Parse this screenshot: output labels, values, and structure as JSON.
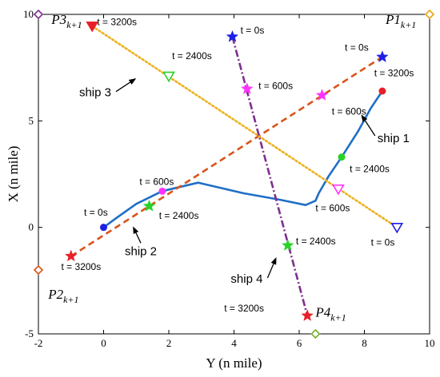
{
  "chart_data": {
    "type": "line",
    "xlabel": "Y (n mile)",
    "ylabel": "X (n mile)",
    "xlim": [
      -2,
      10
    ],
    "ylim": [
      -5,
      10
    ],
    "xticks": [
      "-2",
      "0",
      "2",
      "4",
      "6",
      "8",
      "10"
    ],
    "yticks": [
      "-5",
      "0",
      "5",
      "10"
    ],
    "grid": false,
    "series": [
      {
        "name": "ship 1",
        "color": "#1f6fc6",
        "style": "solid",
        "points": [
          [
            8.55,
            6.4
          ],
          [
            8.2,
            5.6
          ],
          [
            7.8,
            4.5
          ],
          [
            7.3,
            3.3
          ],
          [
            6.9,
            2.4
          ],
          [
            6.6,
            1.6
          ],
          [
            6.5,
            1.25
          ],
          [
            6.2,
            1.05
          ],
          [
            5.4,
            1.3
          ],
          [
            4.3,
            1.6
          ],
          [
            2.9,
            2.1
          ],
          [
            1.8,
            1.7
          ],
          [
            1.0,
            1.1
          ],
          [
            0.4,
            0.45
          ],
          [
            0.0,
            0.0
          ]
        ]
      },
      {
        "name": "ship 2",
        "color": "#d95319",
        "style": "dashed",
        "points": [
          [
            -1.0,
            -1.35
          ],
          [
            8.55,
            8.0
          ]
        ]
      },
      {
        "name": "ship 3",
        "color": "#edb120",
        "style": "dotted",
        "points": [
          [
            -0.35,
            9.45
          ],
          [
            9.0,
            0.0
          ]
        ]
      },
      {
        "name": "ship 4",
        "color": "#7e2f8e",
        "style": "dashdot",
        "points": [
          [
            3.95,
            8.95
          ],
          [
            6.25,
            -4.15
          ]
        ]
      }
    ],
    "markers": [
      {
        "name": "ship1-t0",
        "x": 8.55,
        "y": 6.4,
        "shape": "circle",
        "color": "#e8202a"
      },
      {
        "name": "ship1-t2400",
        "x": 7.3,
        "y": 3.3,
        "shape": "circle",
        "color": "#28d328"
      },
      {
        "name": "ship1-t600",
        "x": 1.8,
        "y": 1.7,
        "shape": "circle",
        "color": "#ff33ff"
      },
      {
        "name": "ship1-t3200",
        "x": 0.0,
        "y": 0.0,
        "shape": "circle",
        "color": "#1f1fe6"
      },
      {
        "name": "ship2-t0",
        "x": 8.55,
        "y": 8.0,
        "shape": "star",
        "color": "#1f1fe6"
      },
      {
        "name": "ship2-t600",
        "x": 6.7,
        "y": 6.2,
        "shape": "star",
        "color": "#ff33ff"
      },
      {
        "name": "ship2-t2400",
        "x": 1.4,
        "y": 1.0,
        "shape": "star",
        "color": "#28d328"
      },
      {
        "name": "ship2-t3200",
        "x": -1.0,
        "y": -1.35,
        "shape": "star",
        "color": "#e8202a"
      },
      {
        "name": "ship3-t3200",
        "x": -0.35,
        "y": 9.45,
        "shape": "tri-filled",
        "color": "#e8202a"
      },
      {
        "name": "ship3-t2400",
        "x": 2.0,
        "y": 7.1,
        "shape": "tri-open",
        "color": "#28d328"
      },
      {
        "name": "ship3-t600",
        "x": 7.2,
        "y": 1.8,
        "shape": "tri-open",
        "color": "#ff33ff"
      },
      {
        "name": "ship3-t0",
        "x": 9.0,
        "y": 0.0,
        "shape": "tri-open",
        "color": "#1f1fe6"
      },
      {
        "name": "ship4-t0",
        "x": 3.95,
        "y": 8.95,
        "shape": "star",
        "color": "#1f1fe6"
      },
      {
        "name": "ship4-t600",
        "x": 4.4,
        "y": 6.5,
        "shape": "star",
        "color": "#ff33ff"
      },
      {
        "name": "ship4-t2400",
        "x": 5.65,
        "y": -0.85,
        "shape": "star",
        "color": "#28d328"
      },
      {
        "name": "ship4-t3200",
        "x": 6.25,
        "y": -4.15,
        "shape": "star",
        "color": "#e8202a"
      },
      {
        "name": "p1-diamond",
        "x": 10.0,
        "y": 10.0,
        "shape": "diamond",
        "color": "#e8a317"
      },
      {
        "name": "p2-diamond",
        "x": -2.0,
        "y": -2.0,
        "shape": "diamond",
        "color": "#d95319"
      },
      {
        "name": "p3-diamond",
        "x": -2.0,
        "y": 10.0,
        "shape": "diamond",
        "color": "#7e2f8e"
      },
      {
        "name": "p4-diamond",
        "x": 6.5,
        "y": -5.0,
        "shape": "diamond",
        "color": "#77ac30"
      }
    ],
    "time_labels": [
      {
        "name": "ship3-label-3200",
        "text": "t = 3200s",
        "x": -0.2,
        "y": 9.5,
        "anchor": "start"
      },
      {
        "name": "ship3-label-2400",
        "text": "t = 2400s",
        "x": 2.1,
        "y": 7.9,
        "anchor": "start"
      },
      {
        "name": "ship4-label-0",
        "text": "t = 0s",
        "x": 4.2,
        "y": 9.1,
        "anchor": "start"
      },
      {
        "name": "ship2-label-0",
        "text": "t = 0s",
        "x": 7.4,
        "y": 8.3,
        "anchor": "start"
      },
      {
        "name": "ship4-label-600",
        "text": "t = 600s",
        "x": 4.75,
        "y": 6.5,
        "anchor": "start"
      },
      {
        "name": "ship1-label-3200",
        "text": "t = 3200s",
        "x": 8.3,
        "y": 7.1,
        "anchor": "start"
      },
      {
        "name": "ship2-label-600",
        "text": "t = 600s",
        "x": 7.0,
        "y": 5.3,
        "anchor": "start"
      },
      {
        "name": "ship1-label-2400",
        "text": "t = 2400s",
        "x": 7.55,
        "y": 2.6,
        "anchor": "start"
      },
      {
        "name": "ship1-label-600",
        "text": "t = 600s",
        "x": 1.1,
        "y": 2.0,
        "anchor": "start"
      },
      {
        "name": "ship3-label-600",
        "text": "t = 600s",
        "x": 6.5,
        "y": 0.75,
        "anchor": "start"
      },
      {
        "name": "ship1-label-0",
        "text": "t = 0s",
        "x": -0.6,
        "y": 0.55,
        "anchor": "start"
      },
      {
        "name": "ship2-label-2400",
        "text": "t = 2400s",
        "x": 1.7,
        "y": 0.4,
        "anchor": "start"
      },
      {
        "name": "ship3-label-0",
        "text": "t = 0s",
        "x": 8.2,
        "y": -0.85,
        "anchor": "start"
      },
      {
        "name": "ship4-label-2400",
        "text": "t = 2400s",
        "x": 5.9,
        "y": -0.8,
        "anchor": "start"
      },
      {
        "name": "ship2-label-3200",
        "text": "t = 3200s",
        "x": -1.3,
        "y": -2.0,
        "anchor": "start"
      },
      {
        "name": "ship4-label-3200",
        "text": "t = 3200s",
        "x": 3.7,
        "y": -3.95,
        "anchor": "start"
      }
    ],
    "ship_labels": [
      {
        "name": "ship3-label",
        "text": "ship 3",
        "x": -0.75,
        "y": 6.15,
        "arrow_to": [
          1.0,
          7.0
        ]
      },
      {
        "name": "ship1-label",
        "text": "ship 1",
        "x": 8.4,
        "y": 4.0,
        "arrow_to": [
          7.9,
          5.3
        ]
      },
      {
        "name": "ship2-label",
        "text": "ship 2",
        "x": 0.65,
        "y": -1.3,
        "arrow_to": [
          0.9,
          0.05
        ]
      },
      {
        "name": "ship4-label",
        "text": "ship 4",
        "x": 3.9,
        "y": -2.6,
        "arrow_to": [
          5.3,
          -1.4
        ]
      }
    ],
    "point_labels": [
      {
        "name": "p3-label",
        "base": "P3",
        "sub": "k+1",
        "x": -1.6,
        "y": 9.55
      },
      {
        "name": "p1-label",
        "base": "P1",
        "sub": "k+1",
        "x": 8.65,
        "y": 9.55
      },
      {
        "name": "p2-label",
        "base": "P2",
        "sub": "k+1",
        "x": -1.7,
        "y": -3.35
      },
      {
        "name": "p4-label",
        "base": "P4",
        "sub": "k+1",
        "x": 6.5,
        "y": -4.2
      }
    ]
  }
}
